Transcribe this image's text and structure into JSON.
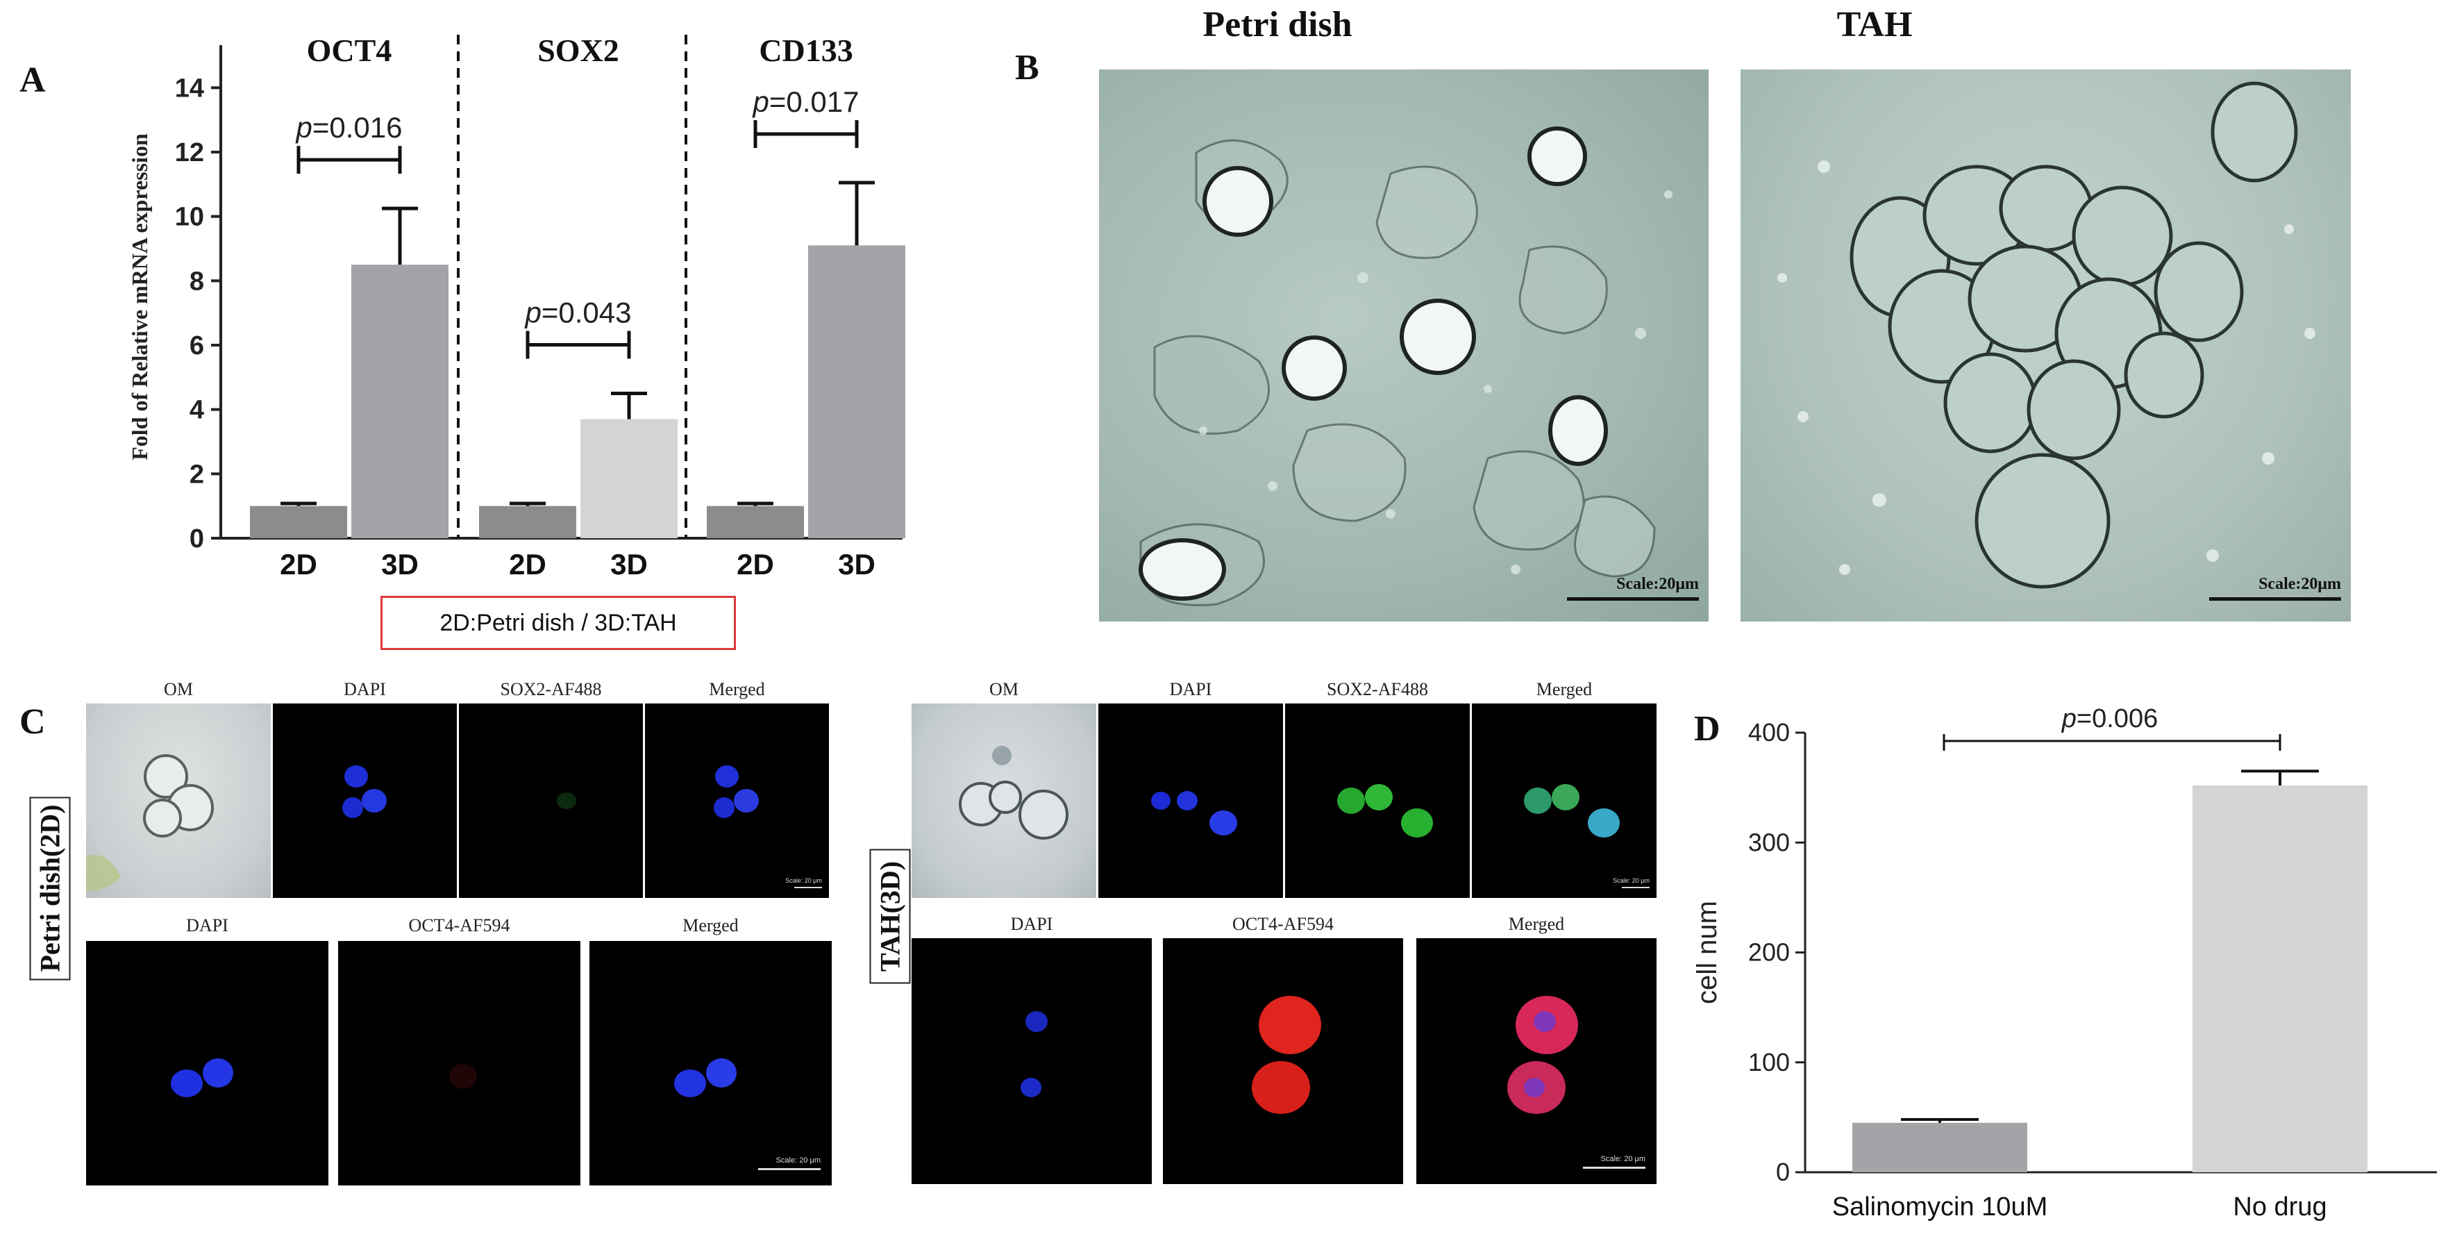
{
  "panels": {
    "a": {
      "letter": "A"
    },
    "b": {
      "letter": "B",
      "left_title": "Petri dish",
      "right_title": "TAH",
      "left_scale": "Scale:20μm",
      "right_scale": "Scale:20μm"
    },
    "c": {
      "letter": "C",
      "left_side_label": "Petri dish(2D)",
      "right_side_label": "TAH(3D)",
      "top_row_titles": [
        "OM",
        "DAPI",
        "SOX2-AF488",
        "Merged"
      ],
      "bottom_row_titles": [
        "DAPI",
        "OCT4-AF594",
        "Merged"
      ],
      "scale_small": "Scale: 20 μm",
      "scale_large": "Scale: 20 μm"
    },
    "d": {
      "letter": "D"
    }
  },
  "colors": {
    "bar_dark": "#8c8c8c",
    "bar_mid": "#a3a3a8",
    "bar_light": "#d4d4d4",
    "legend_border": "#e0383c",
    "micro_bg": "#9fb6b0"
  },
  "chart_data": [
    {
      "type": "bar",
      "panel": "A",
      "ylabel": "Fold of Relative mRNA expression",
      "ylim": [
        0,
        15
      ],
      "yticks": [
        0,
        2,
        4,
        6,
        8,
        10,
        12,
        14
      ],
      "categories": [
        "2D",
        "3D"
      ],
      "groups": [
        {
          "name": "OCT4",
          "values": [
            1.0,
            8.5
          ],
          "errors": [
            0.08,
            1.75
          ],
          "p_label": "p=0.016"
        },
        {
          "name": "SOX2",
          "values": [
            1.0,
            3.7
          ],
          "errors": [
            0.08,
            0.8
          ],
          "p_label": "p=0.043"
        },
        {
          "name": "CD133",
          "values": [
            1.0,
            9.1
          ],
          "errors": [
            0.08,
            1.95
          ],
          "p_label": "p=0.017"
        }
      ],
      "legend_note": "2D:Petri dish / 3D:TAH"
    },
    {
      "type": "bar",
      "panel": "D",
      "ylabel": "cell num",
      "ylim": [
        0,
        400
      ],
      "yticks": [
        0,
        100,
        200,
        300,
        400
      ],
      "categories": [
        "Salinomycin 10uM",
        "No drug"
      ],
      "values": [
        45,
        352
      ],
      "errors": [
        3,
        13
      ],
      "p_label": "p=0.006"
    }
  ]
}
